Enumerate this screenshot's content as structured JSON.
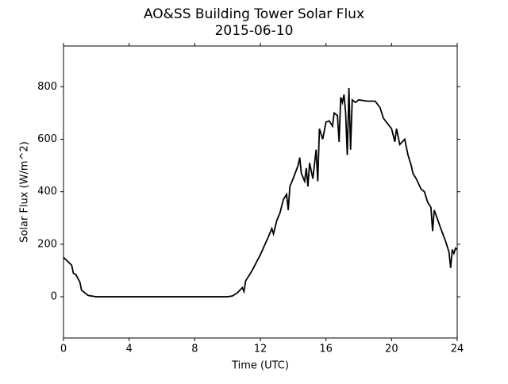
{
  "chart_data": {
    "type": "line",
    "title": "AO&SS Building Tower Solar Flux",
    "subtitle": "2015-06-10",
    "x_label": "Time (UTC)",
    "y_label": "Solar Flux (W/m^2)",
    "xlim": [
      0,
      24
    ],
    "xticks": [
      0,
      4,
      8,
      12,
      16,
      20,
      24
    ],
    "ylim": [
      -157,
      955
    ],
    "yticks": [
      0,
      200,
      400,
      600,
      800
    ],
    "color": "#000000",
    "x": [
      0,
      0.25,
      0.5,
      0.6,
      0.75,
      1,
      1.1,
      1.5,
      2,
      10,
      10.3,
      10.6,
      10.9,
      11,
      11.1,
      11.5,
      12,
      12.5,
      12.7,
      12.8,
      13,
      13.2,
      13.4,
      13.6,
      13.7,
      13.8,
      14,
      14.3,
      14.4,
      14.5,
      14.7,
      14.8,
      14.9,
      15,
      15.2,
      15.4,
      15.5,
      15.6,
      15.8,
      16,
      16.2,
      16.4,
      16.5,
      16.7,
      16.8,
      16.9,
      17,
      17.1,
      17.2,
      17.3,
      17.4,
      17.5,
      17.6,
      17.8,
      18,
      18.5,
      19,
      19.3,
      19.5,
      20,
      20.2,
      20.3,
      20.5,
      20.8,
      21,
      21.2,
      21.3,
      21.5,
      21.8,
      22,
      22.2,
      22.4,
      22.5,
      22.6,
      23,
      23.3,
      23.5,
      23.6,
      23.7,
      23.8,
      23.9,
      24
    ],
    "values": [
      150,
      135,
      120,
      90,
      85,
      55,
      25,
      5,
      0,
      0,
      3,
      15,
      35,
      20,
      60,
      100,
      160,
      230,
      260,
      240,
      290,
      320,
      370,
      390,
      330,
      420,
      450,
      500,
      530,
      470,
      440,
      490,
      420,
      510,
      450,
      560,
      440,
      640,
      600,
      665,
      670,
      650,
      700,
      690,
      590,
      760,
      740,
      770,
      700,
      540,
      795,
      560,
      750,
      740,
      750,
      745,
      745,
      720,
      680,
      640,
      590,
      640,
      580,
      600,
      540,
      500,
      470,
      450,
      410,
      400,
      360,
      340,
      250,
      330,
      260,
      210,
      170,
      110,
      180,
      165,
      185,
      180
    ]
  }
}
